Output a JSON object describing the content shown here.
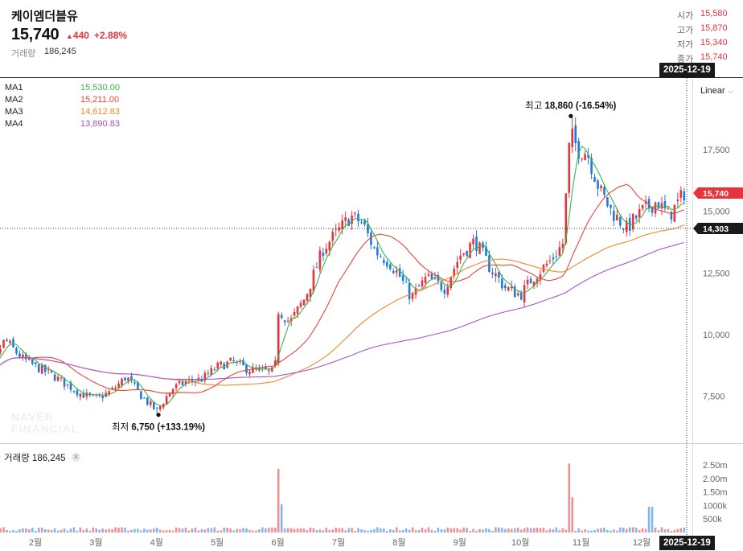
{
  "header": {
    "stock_name": "케이엠더블유",
    "price": "15,740",
    "change": "440",
    "change_pct": "+2.88%",
    "volume_label": "거래량",
    "volume_value": "186,245"
  },
  "ohlc": [
    {
      "label": "시가",
      "value": "15,580"
    },
    {
      "label": "고가",
      "value": "15,870"
    },
    {
      "label": "저가",
      "value": "15,340"
    },
    {
      "label": "종가",
      "value": "15,740"
    }
  ],
  "moving_averages": [
    {
      "name": "MA1",
      "value": "15,530.00",
      "color": "#3ab54a"
    },
    {
      "name": "MA2",
      "value": "15,211.00",
      "color": "#e8453c"
    },
    {
      "name": "MA3",
      "value": "14,612.83",
      "color": "#f08a24"
    },
    {
      "name": "MA4",
      "value": "13,890.83",
      "color": "#a356c9"
    }
  ],
  "date_badge": "2025-12-19",
  "scale_mode": "Linear",
  "volume_panel": {
    "title": "거래량 186,245"
  },
  "watermark": [
    "NAVER",
    "FINANCIAL"
  ],
  "colors": {
    "up": "#e6343c",
    "down": "#1f7ae0",
    "badge": "#e6343c",
    "crosshair_badge": "#1a1a1a"
  },
  "chart_data": {
    "type": "candlestick",
    "title": "케이엠더블유",
    "x_tick_labels": [
      "2월",
      "3월",
      "4월",
      "5월",
      "6월",
      "7월",
      "8월",
      "9월",
      "10월",
      "11월",
      "12월"
    ],
    "y_ticks": [
      7500,
      10000,
      12500,
      15000,
      17500
    ],
    "y_tick_labels": [
      "7,500",
      "10,000",
      "12,500",
      "15,000",
      "17,500"
    ],
    "ylim": [
      5600,
      20400
    ],
    "current_price_label": "15,740",
    "crosshair_price_label": "14,303",
    "annotations": [
      {
        "name": "high",
        "text_label": "최고",
        "text_value": "18,860 (-16.54%)",
        "value": 18860,
        "month": 10.83
      },
      {
        "name": "low",
        "text_label": "최저",
        "text_value": "6,750 (+133.19%)",
        "value": 6750,
        "month": 4.03
      }
    ],
    "price_keypoints": [
      [
        1.0,
        8400
      ],
      [
        1.25,
        8600
      ],
      [
        1.5,
        9800
      ],
      [
        1.75,
        9100
      ],
      [
        2.0,
        8700
      ],
      [
        2.25,
        8400
      ],
      [
        2.5,
        8000
      ],
      [
        2.75,
        7600
      ],
      [
        3.0,
        7400
      ],
      [
        3.25,
        7700
      ],
      [
        3.5,
        8300
      ],
      [
        3.75,
        7500
      ],
      [
        4.0,
        6900
      ],
      [
        4.25,
        7800
      ],
      [
        4.5,
        8100
      ],
      [
        4.75,
        8200
      ],
      [
        5.0,
        8700
      ],
      [
        5.25,
        8900
      ],
      [
        5.5,
        8600
      ],
      [
        5.75,
        8500
      ],
      [
        5.95,
        8500
      ],
      [
        6.0,
        11000
      ],
      [
        6.2,
        10500
      ],
      [
        6.45,
        11500
      ],
      [
        6.75,
        13500
      ],
      [
        7.0,
        14200
      ],
      [
        7.2,
        14800
      ],
      [
        7.4,
        14500
      ],
      [
        7.6,
        13400
      ],
      [
        7.85,
        12900
      ],
      [
        8.0,
        12400
      ],
      [
        8.2,
        11500
      ],
      [
        8.45,
        12300
      ],
      [
        8.75,
        11900
      ],
      [
        9.0,
        13200
      ],
      [
        9.25,
        13800
      ],
      [
        9.5,
        12700
      ],
      [
        9.75,
        11900
      ],
      [
        10.0,
        11600
      ],
      [
        10.2,
        12300
      ],
      [
        10.5,
        13000
      ],
      [
        10.7,
        13700
      ],
      [
        10.82,
        18200
      ],
      [
        10.95,
        17500
      ],
      [
        11.1,
        17400
      ],
      [
        11.3,
        15900
      ],
      [
        11.5,
        15000
      ],
      [
        11.75,
        14300
      ],
      [
        12.0,
        15000
      ],
      [
        12.25,
        15400
      ],
      [
        12.45,
        14800
      ],
      [
        12.7,
        15740
      ]
    ],
    "volume_ticks": [
      500000,
      1000000,
      1500000,
      2000000,
      2500000
    ],
    "volume_tick_labels": [
      "500k",
      "1000k",
      "1.50m",
      "2.00m",
      "2.50m"
    ],
    "volume_spikes": [
      {
        "month": 6.0,
        "value": 2350000
      },
      {
        "month": 6.05,
        "value": 1050000
      },
      {
        "month": 10.83,
        "value": 2550000
      },
      {
        "month": 10.87,
        "value": 1300000
      },
      {
        "month": 12.15,
        "value": 950000
      }
    ]
  }
}
